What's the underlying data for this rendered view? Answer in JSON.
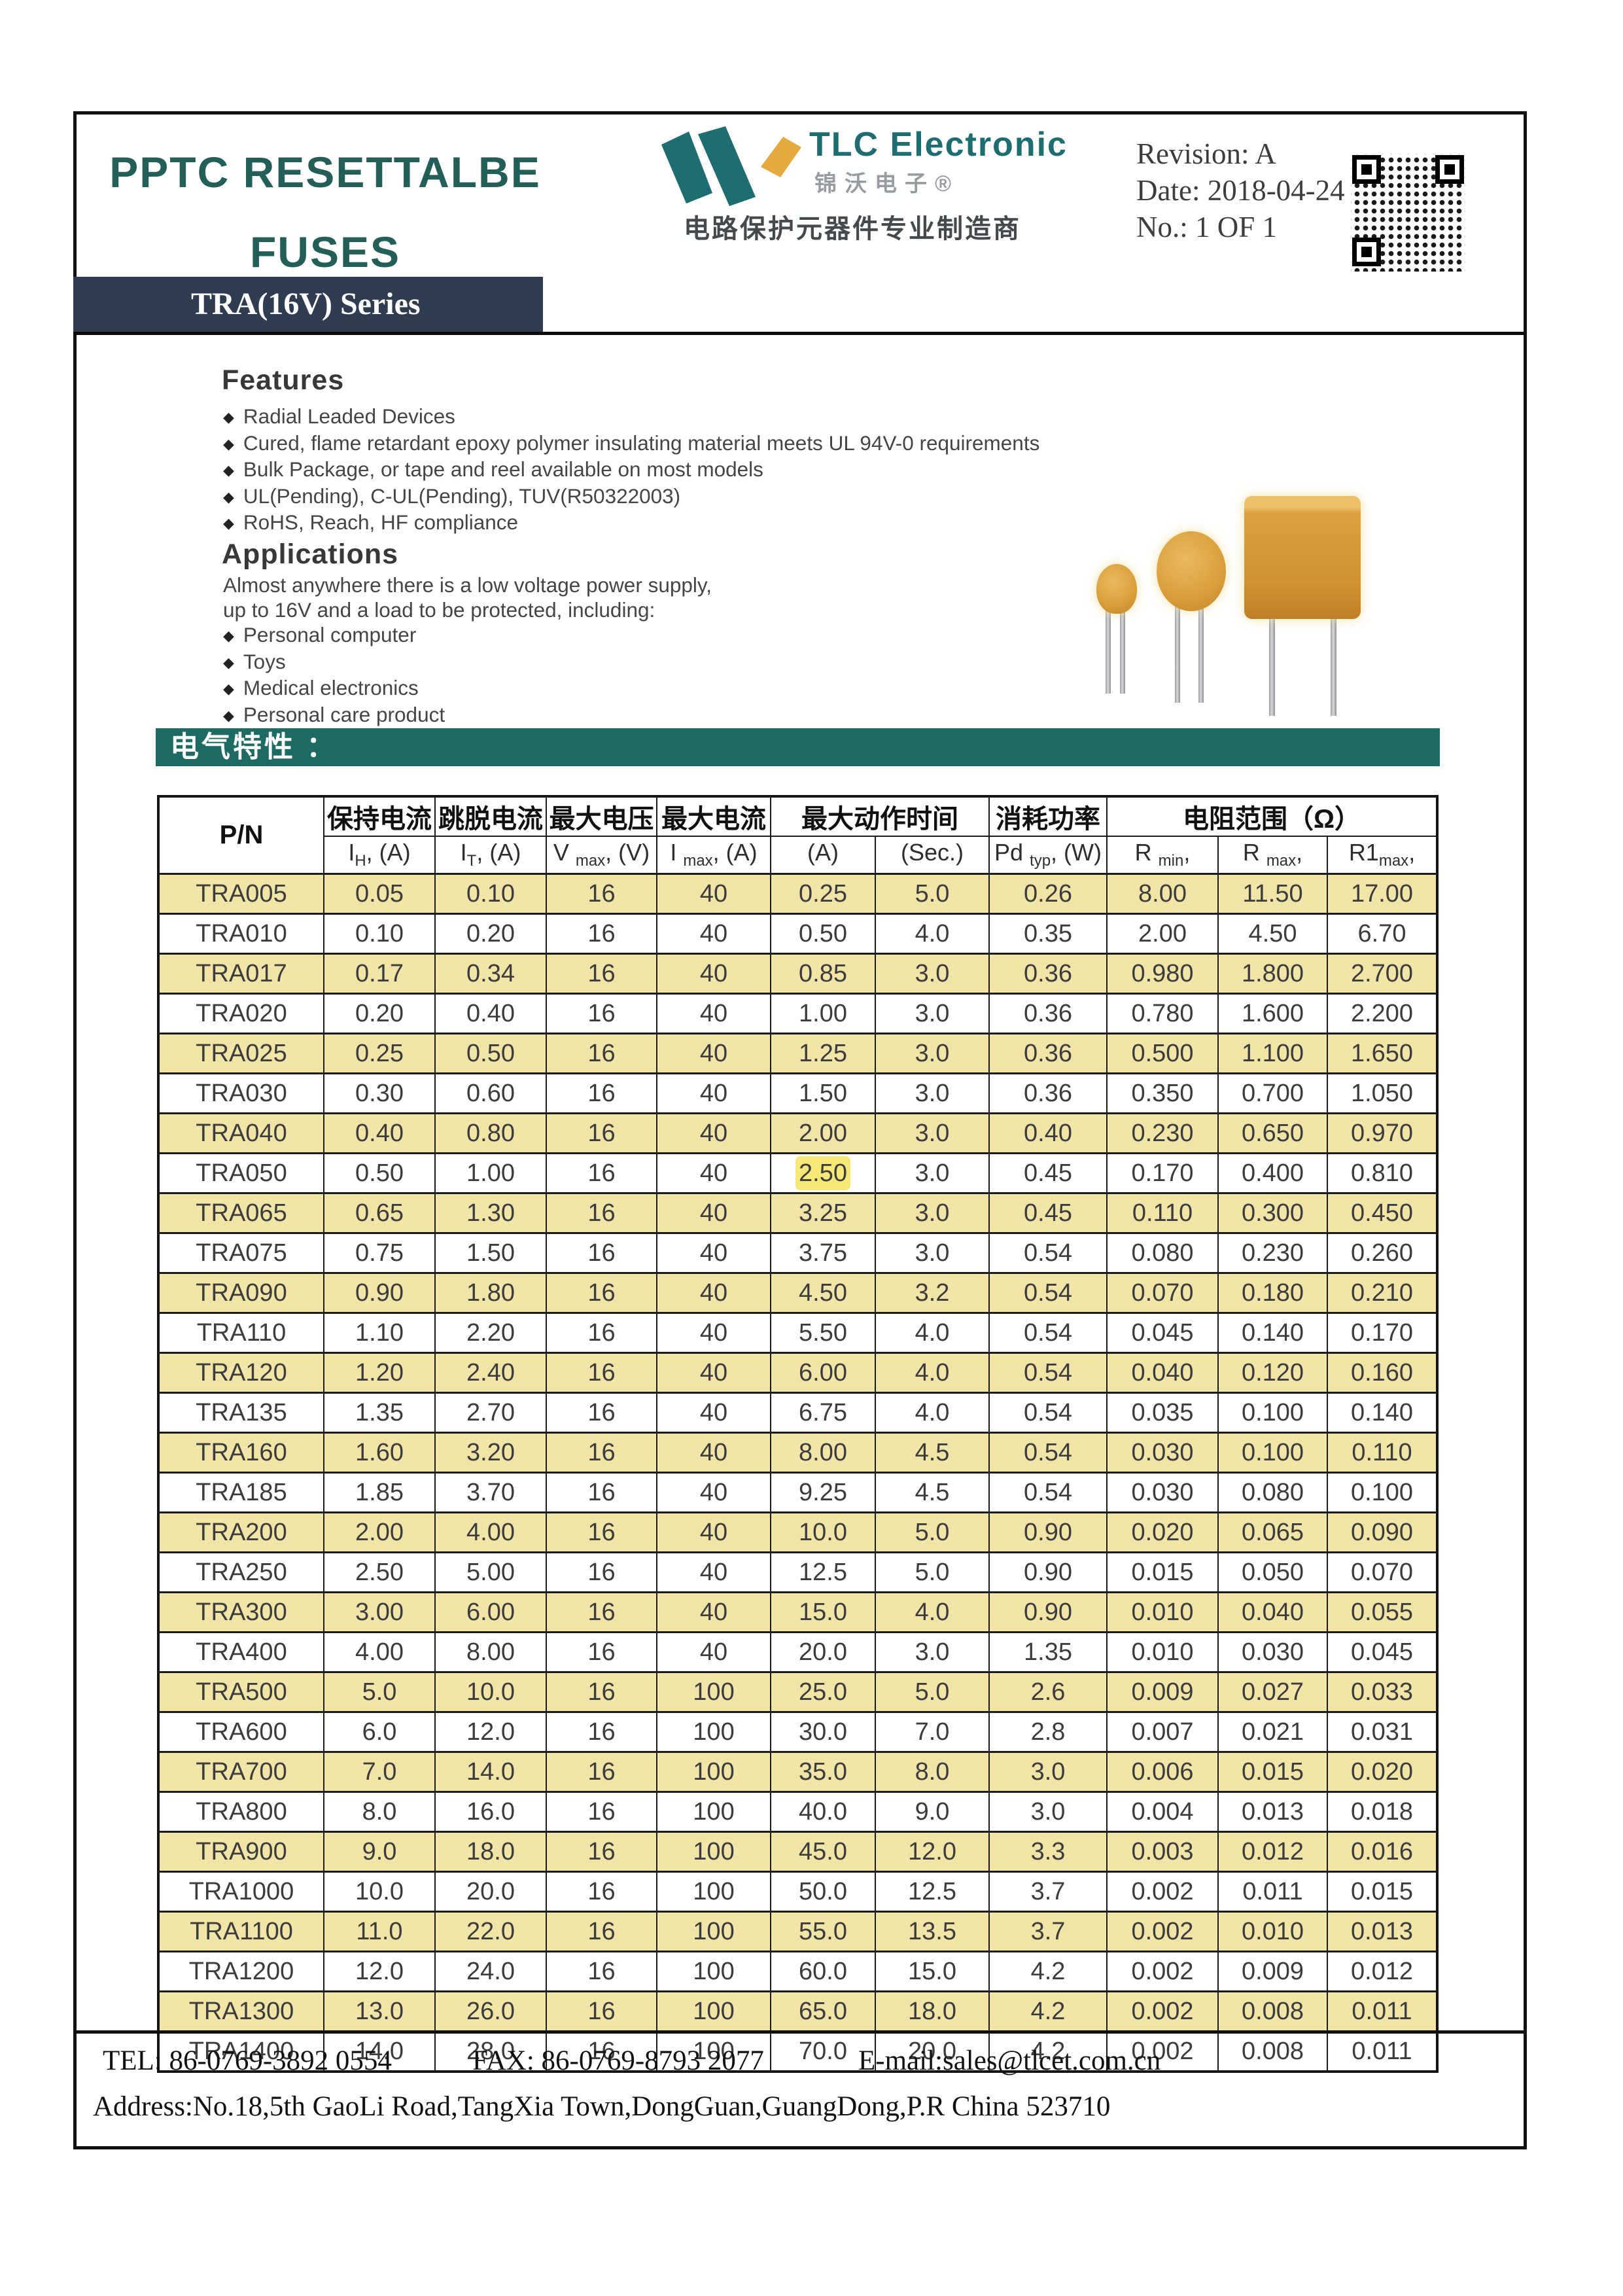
{
  "colors": {
    "title_teal": "#235e58",
    "teal_accent": "#1d6b63",
    "navy_banner": "#303c4f",
    "logo_orange": "#e6a93f",
    "logo_teal": "#1e6d70"
  },
  "header": {
    "title_line1": "PPTC RESETTALBE",
    "title_line2": "FUSES",
    "series_banner": "TRA(16V) Series",
    "revision": "Revision: A",
    "date": "Date: 2018-04-24",
    "number": "No.: 1 OF 1"
  },
  "logo": {
    "name": "TLC Electronic",
    "cn_name": "锦沃电子®",
    "tagline": "电路保护元器件专业制造商"
  },
  "features": {
    "heading": "Features",
    "items": [
      "Radial Leaded Devices",
      "Cured, flame retardant epoxy polymer insulating material meets UL 94V-0 requirements",
      "Bulk Package, or tape and reel available on most models",
      "UL(Pending), C-UL(Pending), TUV(R50322003)",
      "RoHS, Reach, HF compliance"
    ]
  },
  "applications": {
    "heading": "Applications",
    "intro_line1": "Almost anywhere there is a low voltage power supply,",
    "intro_line2": "up to 16V and a load to be protected, including:",
    "items": [
      "Personal computer",
      "Toys",
      "Medical electronics",
      "Personal care product"
    ]
  },
  "section": {
    "electrical_heading": "电气特性 ："
  },
  "table": {
    "colors": {
      "stripe_row": "#f0e4a6"
    },
    "group_headers": {
      "pn": "P/N",
      "hold_current": "保持电流",
      "trip_current": "跳脱电流",
      "max_voltage": "最大电压",
      "max_current": "最大电流",
      "max_time": "最大动作时间",
      "power": "消耗功率",
      "resistance": "电阻范围（Ω）"
    },
    "sub_headers": [
      {
        "base": "I",
        "sub": "H",
        "rest": ", (A)"
      },
      {
        "base": "I",
        "sub": "T",
        "rest": ", (A)"
      },
      {
        "base": "V ",
        "sub": "max",
        "rest": ", (V)"
      },
      {
        "base": "I ",
        "sub": "max",
        "rest": ", (A)"
      },
      {
        "base": "(A)",
        "sub": "",
        "rest": ""
      },
      {
        "base": "(Sec.)",
        "sub": "",
        "rest": ""
      },
      {
        "base": "Pd ",
        "sub": "typ",
        "rest": ", (W)"
      },
      {
        "base": "R ",
        "sub": "min",
        "rest": ","
      },
      {
        "base": "R ",
        "sub": "max",
        "rest": ","
      },
      {
        "base": "R1",
        "sub": "max",
        "rest": ","
      }
    ],
    "watermark_cell": {
      "row": 7,
      "col": 5
    },
    "rows": [
      [
        "TRA005",
        "0.05",
        "0.10",
        "16",
        "40",
        "0.25",
        "5.0",
        "0.26",
        "8.00",
        "11.50",
        "17.00"
      ],
      [
        "TRA010",
        "0.10",
        "0.20",
        "16",
        "40",
        "0.50",
        "4.0",
        "0.35",
        "2.00",
        "4.50",
        "6.70"
      ],
      [
        "TRA017",
        "0.17",
        "0.34",
        "16",
        "40",
        "0.85",
        "3.0",
        "0.36",
        "0.980",
        "1.800",
        "2.700"
      ],
      [
        "TRA020",
        "0.20",
        "0.40",
        "16",
        "40",
        "1.00",
        "3.0",
        "0.36",
        "0.780",
        "1.600",
        "2.200"
      ],
      [
        "TRA025",
        "0.25",
        "0.50",
        "16",
        "40",
        "1.25",
        "3.0",
        "0.36",
        "0.500",
        "1.100",
        "1.650"
      ],
      [
        "TRA030",
        "0.30",
        "0.60",
        "16",
        "40",
        "1.50",
        "3.0",
        "0.36",
        "0.350",
        "0.700",
        "1.050"
      ],
      [
        "TRA040",
        "0.40",
        "0.80",
        "16",
        "40",
        "2.00",
        "3.0",
        "0.40",
        "0.230",
        "0.650",
        "0.970"
      ],
      [
        "TRA050",
        "0.50",
        "1.00",
        "16",
        "40",
        "2.50",
        "3.0",
        "0.45",
        "0.170",
        "0.400",
        "0.810"
      ],
      [
        "TRA065",
        "0.65",
        "1.30",
        "16",
        "40",
        "3.25",
        "3.0",
        "0.45",
        "0.110",
        "0.300",
        "0.450"
      ],
      [
        "TRA075",
        "0.75",
        "1.50",
        "16",
        "40",
        "3.75",
        "3.0",
        "0.54",
        "0.080",
        "0.230",
        "0.260"
      ],
      [
        "TRA090",
        "0.90",
        "1.80",
        "16",
        "40",
        "4.50",
        "3.2",
        "0.54",
        "0.070",
        "0.180",
        "0.210"
      ],
      [
        "TRA110",
        "1.10",
        "2.20",
        "16",
        "40",
        "5.50",
        "4.0",
        "0.54",
        "0.045",
        "0.140",
        "0.170"
      ],
      [
        "TRA120",
        "1.20",
        "2.40",
        "16",
        "40",
        "6.00",
        "4.0",
        "0.54",
        "0.040",
        "0.120",
        "0.160"
      ],
      [
        "TRA135",
        "1.35",
        "2.70",
        "16",
        "40",
        "6.75",
        "4.0",
        "0.54",
        "0.035",
        "0.100",
        "0.140"
      ],
      [
        "TRA160",
        "1.60",
        "3.20",
        "16",
        "40",
        "8.00",
        "4.5",
        "0.54",
        "0.030",
        "0.100",
        "0.110"
      ],
      [
        "TRA185",
        "1.85",
        "3.70",
        "16",
        "40",
        "9.25",
        "4.5",
        "0.54",
        "0.030",
        "0.080",
        "0.100"
      ],
      [
        "TRA200",
        "2.00",
        "4.00",
        "16",
        "40",
        "10.0",
        "5.0",
        "0.90",
        "0.020",
        "0.065",
        "0.090"
      ],
      [
        "TRA250",
        "2.50",
        "5.00",
        "16",
        "40",
        "12.5",
        "5.0",
        "0.90",
        "0.015",
        "0.050",
        "0.070"
      ],
      [
        "TRA300",
        "3.00",
        "6.00",
        "16",
        "40",
        "15.0",
        "4.0",
        "0.90",
        "0.010",
        "0.040",
        "0.055"
      ],
      [
        "TRA400",
        "4.00",
        "8.00",
        "16",
        "40",
        "20.0",
        "3.0",
        "1.35",
        "0.010",
        "0.030",
        "0.045"
      ],
      [
        "TRA500",
        "5.0",
        "10.0",
        "16",
        "100",
        "25.0",
        "5.0",
        "2.6",
        "0.009",
        "0.027",
        "0.033"
      ],
      [
        "TRA600",
        "6.0",
        "12.0",
        "16",
        "100",
        "30.0",
        "7.0",
        "2.8",
        "0.007",
        "0.021",
        "0.031"
      ],
      [
        "TRA700",
        "7.0",
        "14.0",
        "16",
        "100",
        "35.0",
        "8.0",
        "3.0",
        "0.006",
        "0.015",
        "0.020"
      ],
      [
        "TRA800",
        "8.0",
        "16.0",
        "16",
        "100",
        "40.0",
        "9.0",
        "3.0",
        "0.004",
        "0.013",
        "0.018"
      ],
      [
        "TRA900",
        "9.0",
        "18.0",
        "16",
        "100",
        "45.0",
        "12.0",
        "3.3",
        "0.003",
        "0.012",
        "0.016"
      ],
      [
        "TRA1000",
        "10.0",
        "20.0",
        "16",
        "100",
        "50.0",
        "12.5",
        "3.7",
        "0.002",
        "0.011",
        "0.015"
      ],
      [
        "TRA1100",
        "11.0",
        "22.0",
        "16",
        "100",
        "55.0",
        "13.5",
        "3.7",
        "0.002",
        "0.010",
        "0.013"
      ],
      [
        "TRA1200",
        "12.0",
        "24.0",
        "16",
        "100",
        "60.0",
        "15.0",
        "4.2",
        "0.002",
        "0.009",
        "0.012"
      ],
      [
        "TRA1300",
        "13.0",
        "26.0",
        "16",
        "100",
        "65.0",
        "18.0",
        "4.2",
        "0.002",
        "0.008",
        "0.011"
      ],
      [
        "TRA1400",
        "14.0",
        "28.0",
        "16",
        "100",
        "70.0",
        "20.0",
        "4.2",
        "0.002",
        "0.008",
        "0.011"
      ]
    ]
  },
  "footer": {
    "tel": "TEL: 86-0769-3892 0554",
    "fax": "FAX: 86-0769-8793 2077",
    "email": "E-mail:sales@tlcet.com.cn",
    "address": "Address:No.18,5th GaoLi Road,TangXia Town,DongGuan,GuangDong,P.R China 523710"
  }
}
